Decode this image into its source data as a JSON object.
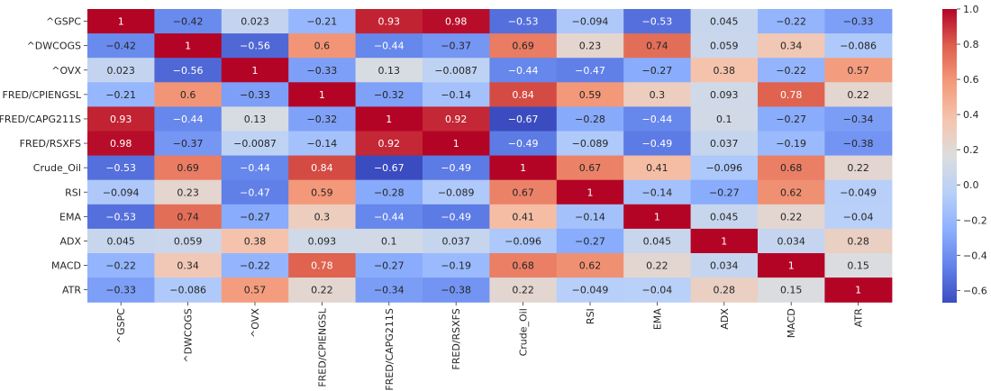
{
  "chart_data": {
    "type": "heatmap",
    "title": "",
    "xlabel": "",
    "ylabel": "",
    "rows": [
      "^GSPC",
      "^DWCOGS",
      "^OVX",
      "FRED/CPIENGSL",
      "FRED/CAPG211S",
      "FRED/RSXFS",
      "Crude_Oil",
      "RSI",
      "EMA",
      "ADX",
      "MACD",
      "ATR"
    ],
    "columns": [
      "^GSPC",
      "^DWCOGS",
      "^OVX",
      "FRED/CPIENGSL",
      "FRED/CAPG211S",
      "FRED/RSXFS",
      "Crude_Oil",
      "RSI",
      "EMA",
      "ADX",
      "MACD",
      "ATR"
    ],
    "values": [
      [
        1,
        -0.42,
        0.023,
        -0.21,
        0.93,
        0.98,
        -0.53,
        -0.094,
        -0.53,
        0.045,
        -0.22,
        -0.33
      ],
      [
        -0.42,
        1,
        -0.56,
        0.6,
        -0.44,
        -0.37,
        0.69,
        0.23,
        0.74,
        0.059,
        0.34,
        -0.086
      ],
      [
        0.023,
        -0.56,
        1,
        -0.33,
        0.13,
        -0.0087,
        -0.44,
        -0.47,
        -0.27,
        0.38,
        -0.22,
        0.57
      ],
      [
        -0.21,
        0.6,
        -0.33,
        1,
        -0.32,
        -0.14,
        0.84,
        0.59,
        0.3,
        0.093,
        0.78,
        0.22
      ],
      [
        0.93,
        -0.44,
        0.13,
        -0.32,
        1,
        0.92,
        -0.67,
        -0.28,
        -0.44,
        0.1,
        -0.27,
        -0.34
      ],
      [
        0.98,
        -0.37,
        -0.0087,
        -0.14,
        0.92,
        1,
        -0.49,
        -0.089,
        -0.49,
        0.037,
        -0.19,
        -0.38
      ],
      [
        -0.53,
        0.69,
        -0.44,
        0.84,
        -0.67,
        -0.49,
        1,
        0.67,
        0.41,
        -0.096,
        0.68,
        0.22
      ],
      [
        -0.094,
        0.23,
        -0.47,
        0.59,
        -0.28,
        -0.089,
        0.67,
        1,
        -0.14,
        -0.27,
        0.62,
        -0.049
      ],
      [
        -0.53,
        0.74,
        -0.27,
        0.3,
        -0.44,
        -0.49,
        0.41,
        -0.14,
        1,
        0.045,
        0.22,
        -0.04
      ],
      [
        0.045,
        0.059,
        0.38,
        0.093,
        0.1,
        0.037,
        -0.096,
        -0.27,
        0.045,
        1,
        0.034,
        0.28
      ],
      [
        -0.22,
        0.34,
        -0.22,
        0.78,
        -0.27,
        -0.19,
        0.68,
        0.62,
        0.22,
        0.034,
        1,
        0.15
      ],
      [
        -0.33,
        -0.086,
        0.57,
        0.22,
        -0.34,
        -0.38,
        0.22,
        -0.049,
        -0.04,
        0.28,
        0.15,
        1
      ]
    ],
    "colormap": "coolwarm",
    "vmin": -0.67,
    "vmax": 1,
    "colorbar": {
      "ticks": [
        1.0,
        0.8,
        0.6,
        0.4,
        0.2,
        0.0,
        -0.2,
        -0.4,
        -0.6
      ],
      "tick_labels": [
        "1.0",
        "0.8",
        "0.6",
        "0.4",
        "0.2",
        "0.0",
        "−0.2",
        "−0.4",
        "−0.6"
      ],
      "placement": "right"
    },
    "annotations": true,
    "grid": false
  }
}
